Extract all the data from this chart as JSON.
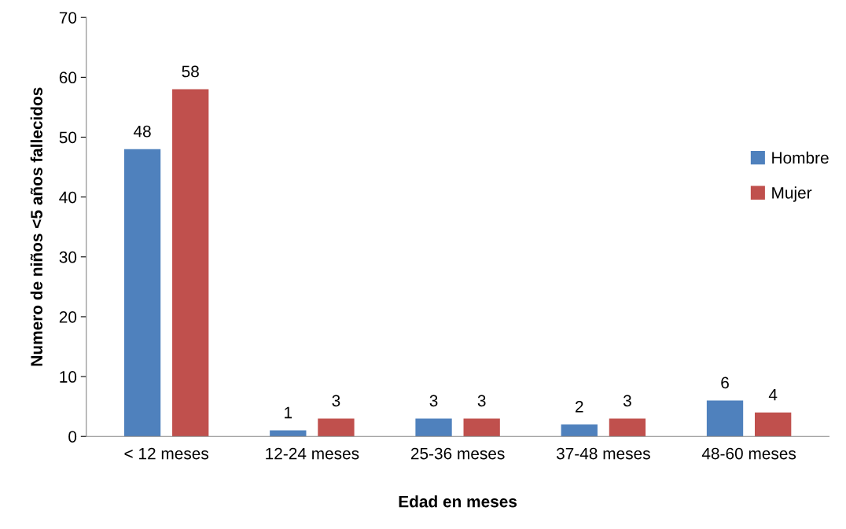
{
  "chart_data": {
    "type": "bar",
    "xlabel": "Edad en meses",
    "ylabel": "Numero de niños <5 años fallecidos",
    "categories": [
      "< 12 meses",
      "12-24 meses",
      "25-36 meses",
      "37-48 meses",
      "48-60 meses"
    ],
    "series": [
      {
        "name": "Hombre",
        "color": "#4f81bd",
        "values": [
          48,
          1,
          3,
          2,
          6
        ]
      },
      {
        "name": "Mujer",
        "color": "#c0504d",
        "values": [
          58,
          3,
          3,
          3,
          4
        ]
      }
    ],
    "ylim": [
      0,
      70
    ],
    "yticks": [
      0,
      10,
      20,
      30,
      40,
      50,
      60,
      70
    ],
    "grid": false,
    "legend": "right",
    "data_labels": true
  }
}
